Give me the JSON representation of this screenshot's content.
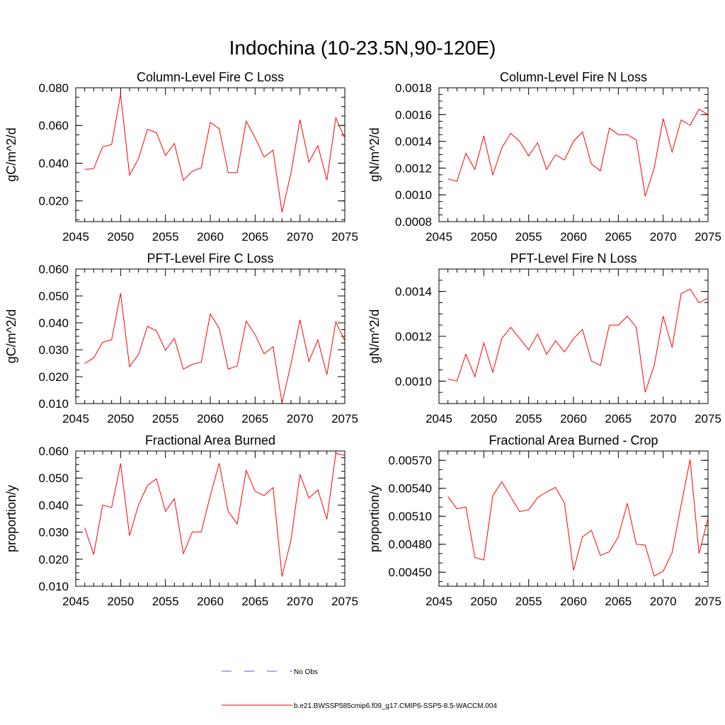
{
  "figure": {
    "title": "Indochina (10-23.5N,90-120E)",
    "legend": [
      {
        "label": "No Obs",
        "color": "#5a5ad8",
        "dash": true
      },
      {
        "label": "b.e21.BWSSP585cmip6.f09_g17.CMIP6-SSP5-8.5-WACCM.004",
        "color": "#ff0000",
        "dash": false
      }
    ]
  },
  "chart_data": [
    {
      "type": "line",
      "title": "Column-Level Fire C Loss",
      "xlabel": "",
      "ylabel": "gC/m^2/d",
      "xlim": [
        2045,
        2075
      ],
      "ylim": [
        0.009,
        0.08
      ],
      "xticks": [
        "2045",
        "2050",
        "2055",
        "2060",
        "2065",
        "2070",
        "2075"
      ],
      "yticks": [
        "0.020",
        "0.040",
        "0.060",
        "0.080"
      ],
      "ytick_values": [
        0.02,
        0.04,
        0.06,
        0.08
      ],
      "yminor": 0.005,
      "x": [
        2046,
        2047,
        2048,
        2049,
        2050,
        2051,
        2052,
        2053,
        2054,
        2055,
        2056,
        2057,
        2058,
        2059,
        2060,
        2061,
        2062,
        2063,
        2064,
        2065,
        2066,
        2067,
        2068,
        2069,
        2070,
        2071,
        2072,
        2073,
        2074,
        2075
      ],
      "series": [
        {
          "color": "#ff0000",
          "values": [
            0.0367,
            0.0371,
            0.0487,
            0.0499,
            0.0765,
            0.0336,
            0.0425,
            0.058,
            0.0562,
            0.0441,
            0.0505,
            0.0309,
            0.0358,
            0.0375,
            0.0617,
            0.0583,
            0.035,
            0.035,
            0.0623,
            0.0536,
            0.0432,
            0.0469,
            0.0139,
            0.0349,
            0.0631,
            0.0405,
            0.0493,
            0.031,
            0.064,
            0.0532
          ]
        }
      ]
    },
    {
      "type": "line",
      "title": "Column-Level Fire N Loss",
      "xlabel": "",
      "ylabel": "gN/m^2/d",
      "xlim": [
        2045,
        2075
      ],
      "ylim": [
        0.0008,
        0.0018
      ],
      "xticks": [
        "2045",
        "2050",
        "2055",
        "2060",
        "2065",
        "2070",
        "2075"
      ],
      "yticks": [
        "0.0008",
        "0.0010",
        "0.0012",
        "0.0014",
        "0.0016",
        "0.0018"
      ],
      "ytick_values": [
        0.0008,
        0.001,
        0.0012,
        0.0014,
        0.0016,
        0.0018
      ],
      "yminor": 5e-05,
      "x": [
        2046,
        2047,
        2048,
        2049,
        2050,
        2051,
        2052,
        2053,
        2054,
        2055,
        2056,
        2057,
        2058,
        2059,
        2060,
        2061,
        2062,
        2063,
        2064,
        2065,
        2066,
        2067,
        2068,
        2069,
        2070,
        2071,
        2072,
        2073,
        2074,
        2075
      ],
      "series": [
        {
          "color": "#ff0000",
          "values": [
            0.00112,
            0.0011,
            0.00131,
            0.00119,
            0.00144,
            0.00115,
            0.00135,
            0.00146,
            0.0014,
            0.00129,
            0.00139,
            0.00119,
            0.0013,
            0.00126,
            0.0014,
            0.00147,
            0.00123,
            0.00118,
            0.0015,
            0.00145,
            0.00145,
            0.00141,
            0.00099,
            0.0012,
            0.00157,
            0.00132,
            0.00156,
            0.00152,
            0.00164,
            0.0016
          ]
        }
      ]
    },
    {
      "type": "line",
      "title": "PFT-Level Fire C Loss",
      "xlabel": "",
      "ylabel": "gC/m^2/d",
      "xlim": [
        2045,
        2075
      ],
      "ylim": [
        0.01,
        0.06
      ],
      "xticks": [
        "2045",
        "2050",
        "2055",
        "2060",
        "2065",
        "2070",
        "2075"
      ],
      "yticks": [
        "0.010",
        "0.020",
        "0.030",
        "0.040",
        "0.050",
        "0.060"
      ],
      "ytick_values": [
        0.01,
        0.02,
        0.03,
        0.04,
        0.05,
        0.06
      ],
      "yminor": 0.0025,
      "x": [
        2046,
        2047,
        2048,
        2049,
        2050,
        2051,
        2052,
        2053,
        2054,
        2055,
        2056,
        2057,
        2058,
        2059,
        2060,
        2061,
        2062,
        2063,
        2064,
        2065,
        2066,
        2067,
        2068,
        2069,
        2070,
        2071,
        2072,
        2073,
        2074,
        2075
      ],
      "series": [
        {
          "color": "#ff0000",
          "values": [
            0.0249,
            0.027,
            0.0328,
            0.0337,
            0.051,
            0.0237,
            0.0283,
            0.0387,
            0.037,
            0.0298,
            0.0342,
            0.0228,
            0.0246,
            0.0254,
            0.0433,
            0.038,
            0.0228,
            0.024,
            0.0406,
            0.0356,
            0.0285,
            0.0311,
            0.0102,
            0.0248,
            0.0411,
            0.0257,
            0.0337,
            0.0207,
            0.0404,
            0.0333
          ]
        }
      ]
    },
    {
      "type": "line",
      "title": "PFT-Level Fire N Loss",
      "xlabel": "",
      "ylabel": "gN/m^2/d",
      "xlim": [
        2045,
        2075
      ],
      "ylim": [
        0.0009,
        0.0015
      ],
      "xticks": [
        "2045",
        "2050",
        "2055",
        "2060",
        "2065",
        "2070",
        "2075"
      ],
      "yticks": [
        "0.0010",
        "0.0012",
        "0.0014"
      ],
      "ytick_values": [
        0.001,
        0.0012,
        0.0014
      ],
      "yminor": 5e-05,
      "x": [
        2046,
        2047,
        2048,
        2049,
        2050,
        2051,
        2052,
        2053,
        2054,
        2055,
        2056,
        2057,
        2058,
        2059,
        2060,
        2061,
        2062,
        2063,
        2064,
        2065,
        2066,
        2067,
        2068,
        2069,
        2070,
        2071,
        2072,
        2073,
        2074,
        2075
      ],
      "series": [
        {
          "color": "#ff0000",
          "values": [
            0.00101,
            0.001,
            0.00112,
            0.00102,
            0.00117,
            0.00104,
            0.00119,
            0.00124,
            0.00119,
            0.00114,
            0.00121,
            0.00112,
            0.00118,
            0.00113,
            0.00119,
            0.00123,
            0.00109,
            0.00107,
            0.00125,
            0.00125,
            0.00129,
            0.00124,
            0.00095,
            0.00107,
            0.00129,
            0.00115,
            0.00139,
            0.00141,
            0.00135,
            0.00137
          ]
        }
      ]
    },
    {
      "type": "line",
      "title": "Fractional Area Burned",
      "xlabel": "",
      "ylabel": "proportion/y",
      "xlim": [
        2045,
        2075
      ],
      "ylim": [
        0.01,
        0.06
      ],
      "xticks": [
        "2045",
        "2050",
        "2055",
        "2060",
        "2065",
        "2070",
        "2075"
      ],
      "yticks": [
        "0.010",
        "0.020",
        "0.030",
        "0.040",
        "0.050",
        "0.060"
      ],
      "ytick_values": [
        0.01,
        0.02,
        0.03,
        0.04,
        0.05,
        0.06
      ],
      "yminor": 0.0025,
      "x": [
        2046,
        2047,
        2048,
        2049,
        2050,
        2051,
        2052,
        2053,
        2054,
        2055,
        2056,
        2057,
        2058,
        2059,
        2060,
        2061,
        2062,
        2063,
        2064,
        2065,
        2066,
        2067,
        2068,
        2069,
        2070,
        2071,
        2072,
        2073,
        2074,
        2075
      ],
      "series": [
        {
          "color": "#ff0000",
          "values": [
            0.0317,
            0.0217,
            0.04,
            0.0391,
            0.0554,
            0.0287,
            0.0401,
            0.0473,
            0.0497,
            0.0377,
            0.0424,
            0.0221,
            0.0301,
            0.0301,
            0.0435,
            0.0555,
            0.0377,
            0.033,
            0.0528,
            0.0451,
            0.0435,
            0.0465,
            0.0136,
            0.0271,
            0.0513,
            0.0426,
            0.0456,
            0.0347,
            0.0591,
            0.0584
          ]
        }
      ]
    },
    {
      "type": "line",
      "title": "Fractional Area Burned - Crop",
      "xlabel": "",
      "ylabel": "proportion/y",
      "xlim": [
        2045,
        2075
      ],
      "ylim": [
        0.00435,
        0.0058
      ],
      "xticks": [
        "2045",
        "2050",
        "2055",
        "2060",
        "2065",
        "2070",
        "2075"
      ],
      "yticks": [
        "0.00450",
        "0.00480",
        "0.00510",
        "0.00540",
        "0.00570"
      ],
      "ytick_values": [
        0.0045,
        0.0048,
        0.0051,
        0.0054,
        0.0057
      ],
      "yminor": 0.0001,
      "x": [
        2046,
        2047,
        2048,
        2049,
        2050,
        2051,
        2052,
        2053,
        2054,
        2055,
        2056,
        2057,
        2058,
        2059,
        2060,
        2061,
        2062,
        2063,
        2064,
        2065,
        2066,
        2067,
        2068,
        2069,
        2070,
        2071,
        2072,
        2073,
        2074,
        2075
      ],
      "series": [
        {
          "color": "#ff0000",
          "values": [
            0.00531,
            0.00518,
            0.0052,
            0.00466,
            0.00463,
            0.00532,
            0.00547,
            0.00531,
            0.00515,
            0.00517,
            0.0053,
            0.00536,
            0.00541,
            0.00524,
            0.00452,
            0.00488,
            0.00495,
            0.00468,
            0.00472,
            0.00488,
            0.00524,
            0.0048,
            0.00479,
            0.00446,
            0.00451,
            0.00471,
            0.00522,
            0.00571,
            0.0047,
            0.00508
          ]
        }
      ]
    }
  ]
}
